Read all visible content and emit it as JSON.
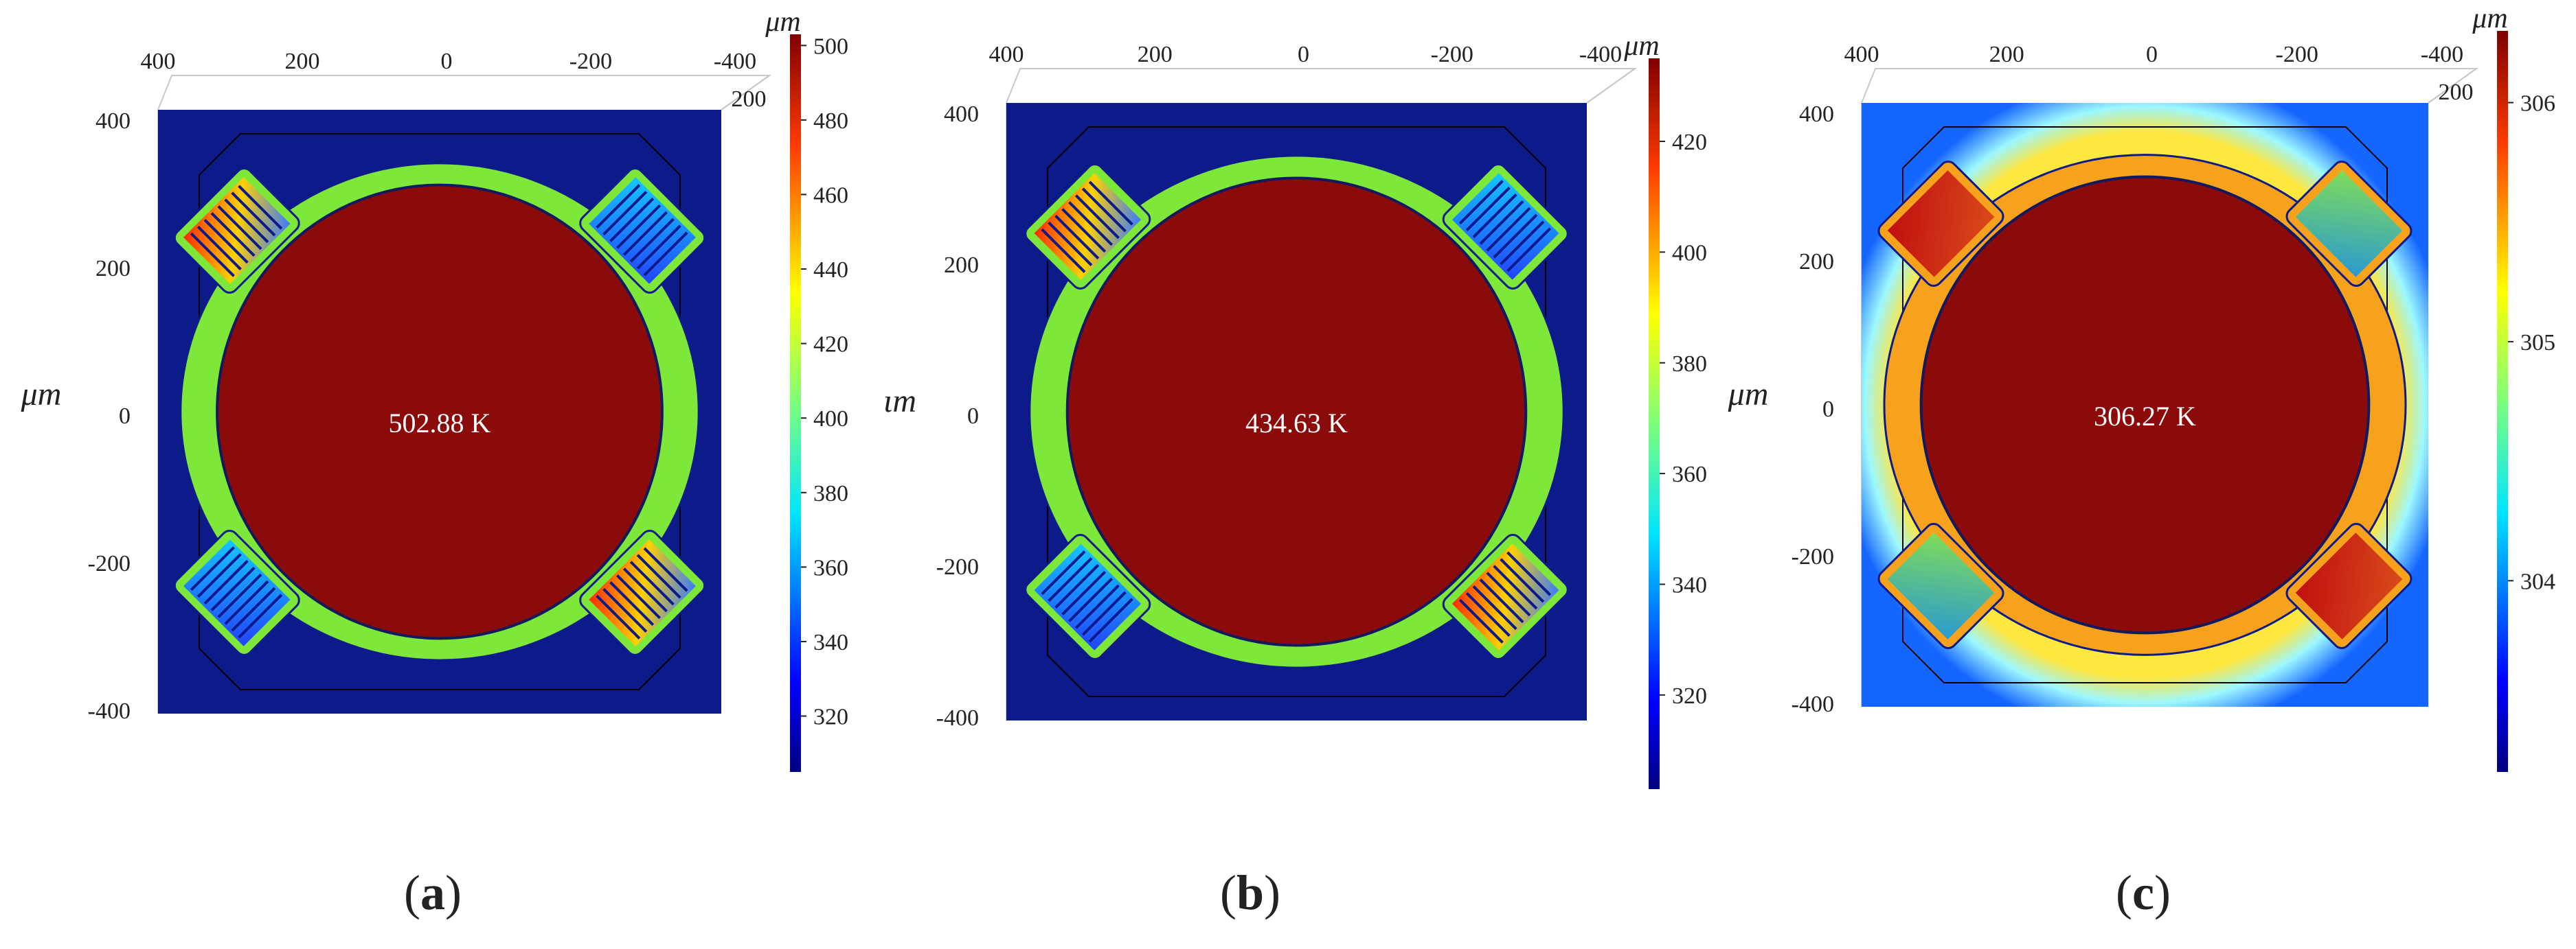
{
  "chart_data": [
    {
      "type": "heatmap",
      "caption_letter": "a",
      "center_label": "502.88 K",
      "unit": "μm",
      "axis_unit_label": "μm",
      "x_ticks": [
        "400",
        "200",
        "0",
        "-200",
        "-400"
      ],
      "y_ticks": [
        "400",
        "200",
        "0",
        "-200",
        "-400"
      ],
      "corner_tick": "200",
      "xlim": [
        400,
        -400
      ],
      "ylim": [
        -400,
        400
      ],
      "colorbar": {
        "ticks": [
          "500",
          "480",
          "460",
          "440",
          "420",
          "400",
          "380",
          "360",
          "340",
          "320"
        ],
        "min": 305,
        "max": 503
      },
      "background": "#0c1a8a",
      "membrane_color": "#7ee83a",
      "center_color": "#8b0a0a"
    },
    {
      "type": "heatmap",
      "caption_letter": "b",
      "center_label": "434.63 K",
      "unit": "μm",
      "axis_unit_label": "ιm",
      "x_ticks": [
        "400",
        "200",
        "0",
        "-200",
        "-400"
      ],
      "y_ticks": [
        "400",
        "200",
        "0",
        "-200",
        "-400"
      ],
      "xlim": [
        400,
        -400
      ],
      "ylim": [
        -400,
        400
      ],
      "colorbar": {
        "ticks": [
          "420",
          "400",
          "380",
          "360",
          "340",
          "320"
        ],
        "min": 303,
        "max": 435
      },
      "background": "#0c1a8a",
      "membrane_color": "#7ee83a",
      "center_color": "#8b0a0a"
    },
    {
      "type": "heatmap",
      "caption_letter": "c",
      "center_label": "306.27 K",
      "unit": "μm",
      "axis_unit_label": "μm",
      "x_ticks": [
        "400",
        "200",
        "0",
        "-200",
        "-400"
      ],
      "y_ticks": [
        "400",
        "200",
        "0",
        "-200",
        "-400"
      ],
      "corner_tick": "200",
      "xlim": [
        400,
        -400
      ],
      "ylim": [
        -400,
        400
      ],
      "colorbar": {
        "ticks": [
          "306",
          "305",
          "304"
        ],
        "min": 303.2,
        "max": 306.3
      },
      "background": "#1565ff",
      "membrane_color": "#f7a21c",
      "center_color": "#8b0a0a"
    }
  ]
}
